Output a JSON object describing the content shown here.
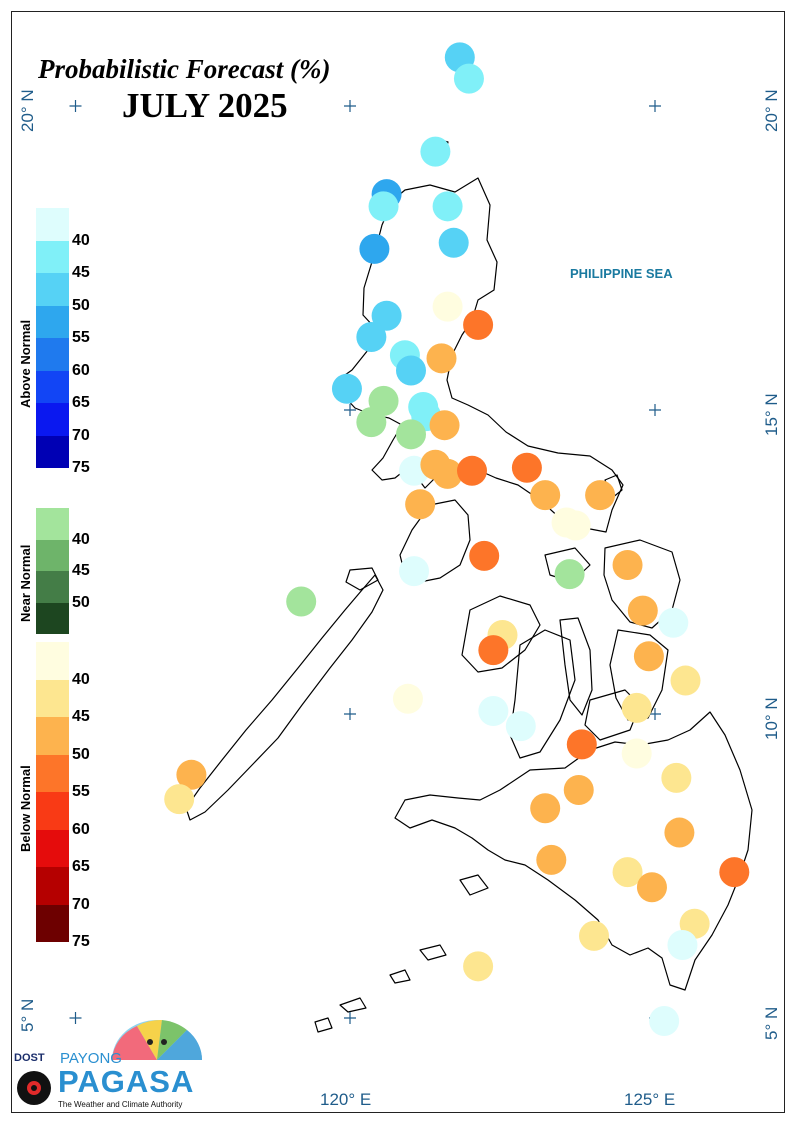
{
  "map": {
    "title": "Probabilistic Forecast (%)",
    "subtitle": "JULY 2025",
    "sea_label": "PHILIPPINE SEA"
  },
  "axes": {
    "lat_20": "20° N",
    "lat_15": "15° N",
    "lat_10": "10° N",
    "lat_5": "5° N",
    "lon_120": "120° E",
    "lon_125": "125° E"
  },
  "legend": {
    "above_title": "Above Normal",
    "near_title": "Near Normal",
    "below_title": "Below Normal",
    "above_labels": [
      "40",
      "45",
      "50",
      "55",
      "60",
      "65",
      "70",
      "75"
    ],
    "near_labels": [
      "40",
      "45",
      "50"
    ],
    "below_labels": [
      "40",
      "45",
      "50",
      "55",
      "60",
      "65",
      "70",
      "75"
    ],
    "above_colors": [
      "#defdfd",
      "#80f0f8",
      "#56d2f5",
      "#2ea7ee",
      "#1f7aee",
      "#1245f5",
      "#0a18f0",
      "#0000b4"
    ],
    "near_colors": [
      "#a3e49c",
      "#6eb46a",
      "#447d47",
      "#1d4620"
    ],
    "below_colors": [
      "#fffde0",
      "#fde690",
      "#fdb34e",
      "#fd7529",
      "#f93a15",
      "#e50c0c",
      "#b50000",
      "#6d0000"
    ]
  },
  "logo": {
    "dost": "DOST",
    "payong": "PAYONG",
    "pagasa": "PAGASA",
    "tagline": "The Weather and Climate Authority"
  },
  "stations": [
    {
      "lon": 121.8,
      "lat": 20.8,
      "cat": "above",
      "prob": 50
    },
    {
      "lon": 121.95,
      "lat": 20.45,
      "cat": "above",
      "prob": 45
    },
    {
      "lon": 121.4,
      "lat": 19.25,
      "cat": "above",
      "prob": 45
    },
    {
      "lon": 120.6,
      "lat": 18.55,
      "cat": "above",
      "prob": 55
    },
    {
      "lon": 120.55,
      "lat": 18.35,
      "cat": "above",
      "prob": 45
    },
    {
      "lon": 121.6,
      "lat": 18.35,
      "cat": "above",
      "prob": 45
    },
    {
      "lon": 120.4,
      "lat": 17.65,
      "cat": "above",
      "prob": 55
    },
    {
      "lon": 121.7,
      "lat": 17.75,
      "cat": "above",
      "prob": 50
    },
    {
      "lon": 121.6,
      "lat": 16.7,
      "cat": "below",
      "prob": 40
    },
    {
      "lon": 122.1,
      "lat": 16.4,
      "cat": "below",
      "prob": 55
    },
    {
      "lon": 120.6,
      "lat": 16.55,
      "cat": "above",
      "prob": 50
    },
    {
      "lon": 120.35,
      "lat": 16.2,
      "cat": "above",
      "prob": 50
    },
    {
      "lon": 121.5,
      "lat": 15.85,
      "cat": "below",
      "prob": 50
    },
    {
      "lon": 120.9,
      "lat": 15.9,
      "cat": "above",
      "prob": 45
    },
    {
      "lon": 121.0,
      "lat": 15.65,
      "cat": "above",
      "prob": 50
    },
    {
      "lon": 119.95,
      "lat": 15.35,
      "cat": "above",
      "prob": 50
    },
    {
      "lon": 120.55,
      "lat": 15.15,
      "cat": "near",
      "prob": 40
    },
    {
      "lon": 121.2,
      "lat": 15.05,
      "cat": "above",
      "prob": 45
    },
    {
      "lon": 121.25,
      "lat": 14.9,
      "cat": "above",
      "prob": 45
    },
    {
      "lon": 120.35,
      "lat": 14.8,
      "cat": "near",
      "prob": 40
    },
    {
      "lon": 121.55,
      "lat": 14.75,
      "cat": "below",
      "prob": 50
    },
    {
      "lon": 121.0,
      "lat": 14.6,
      "cat": "near",
      "prob": 40
    },
    {
      "lon": 121.05,
      "lat": 14.0,
      "cat": "above",
      "prob": 40
    },
    {
      "lon": 121.4,
      "lat": 14.1,
      "cat": "below",
      "prob": 50
    },
    {
      "lon": 121.6,
      "lat": 13.95,
      "cat": "below",
      "prob": 50
    },
    {
      "lon": 122.0,
      "lat": 14.0,
      "cat": "below",
      "prob": 55
    },
    {
      "lon": 122.9,
      "lat": 14.05,
      "cat": "below",
      "prob": 55
    },
    {
      "lon": 121.15,
      "lat": 13.45,
      "cat": "below",
      "prob": 50
    },
    {
      "lon": 123.2,
      "lat": 13.6,
      "cat": "below",
      "prob": 50
    },
    {
      "lon": 124.1,
      "lat": 13.6,
      "cat": "below",
      "prob": 50
    },
    {
      "lon": 123.55,
      "lat": 13.15,
      "cat": "below",
      "prob": 40
    },
    {
      "lon": 123.7,
      "lat": 13.1,
      "cat": "below",
      "prob": 40
    },
    {
      "lon": 122.2,
      "lat": 12.6,
      "cat": "below",
      "prob": 55
    },
    {
      "lon": 121.05,
      "lat": 12.35,
      "cat": "above",
      "prob": 40
    },
    {
      "lon": 123.6,
      "lat": 12.3,
      "cat": "near",
      "prob": 40
    },
    {
      "lon": 124.55,
      "lat": 12.45,
      "cat": "below",
      "prob": 50
    },
    {
      "lon": 119.2,
      "lat": 11.85,
      "cat": "near",
      "prob": 40
    },
    {
      "lon": 124.8,
      "lat": 11.7,
      "cat": "below",
      "prob": 50
    },
    {
      "lon": 122.5,
      "lat": 11.3,
      "cat": "below",
      "prob": 45
    },
    {
      "lon": 122.35,
      "lat": 11.05,
      "cat": "below",
      "prob": 55
    },
    {
      "lon": 125.3,
      "lat": 11.5,
      "cat": "above",
      "prob": 40
    },
    {
      "lon": 124.9,
      "lat": 10.95,
      "cat": "below",
      "prob": 50
    },
    {
      "lon": 125.5,
      "lat": 10.55,
      "cat": "below",
      "prob": 45
    },
    {
      "lon": 120.95,
      "lat": 10.25,
      "cat": "below",
      "prob": 40
    },
    {
      "lon": 122.35,
      "lat": 10.05,
      "cat": "above",
      "prob": 40
    },
    {
      "lon": 124.7,
      "lat": 10.1,
      "cat": "below",
      "prob": 45
    },
    {
      "lon": 122.8,
      "lat": 9.8,
      "cat": "above",
      "prob": 40
    },
    {
      "lon": 123.8,
      "lat": 9.5,
      "cat": "below",
      "prob": 55
    },
    {
      "lon": 124.7,
      "lat": 9.35,
      "cat": "below",
      "prob": 40
    },
    {
      "lon": 117.4,
      "lat": 9.0,
      "cat": "below",
      "prob": 50
    },
    {
      "lon": 125.35,
      "lat": 8.95,
      "cat": "below",
      "prob": 45
    },
    {
      "lon": 117.2,
      "lat": 8.6,
      "cat": "below",
      "prob": 45
    },
    {
      "lon": 123.75,
      "lat": 8.75,
      "cat": "below",
      "prob": 50
    },
    {
      "lon": 123.2,
      "lat": 8.45,
      "cat": "below",
      "prob": 50
    },
    {
      "lon": 125.4,
      "lat": 8.05,
      "cat": "below",
      "prob": 50
    },
    {
      "lon": 123.3,
      "lat": 7.6,
      "cat": "below",
      "prob": 50
    },
    {
      "lon": 124.55,
      "lat": 7.4,
      "cat": "below",
      "prob": 45
    },
    {
      "lon": 124.95,
      "lat": 7.15,
      "cat": "below",
      "prob": 50
    },
    {
      "lon": 126.3,
      "lat": 7.4,
      "cat": "below",
      "prob": 55
    },
    {
      "lon": 124.0,
      "lat": 6.35,
      "cat": "below",
      "prob": 45
    },
    {
      "lon": 125.65,
      "lat": 6.55,
      "cat": "below",
      "prob": 45
    },
    {
      "lon": 125.45,
      "lat": 6.2,
      "cat": "above",
      "prob": 40
    },
    {
      "lon": 122.1,
      "lat": 5.85,
      "cat": "below",
      "prob": 45
    },
    {
      "lon": 125.15,
      "lat": 4.95,
      "cat": "above",
      "prob": 40
    }
  ]
}
